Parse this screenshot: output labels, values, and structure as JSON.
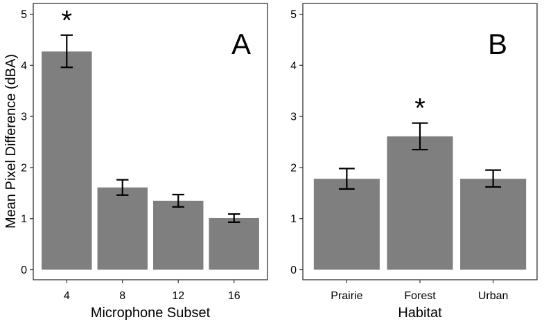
{
  "colors": {
    "bar": "#7f7f7f",
    "frame": "#333333",
    "errorbar": "#000000",
    "background": "#ffffff"
  },
  "y_axis_label": "Mean Pixel Difference (dBA)",
  "chart_data": [
    {
      "type": "bar",
      "panel_label": "A",
      "xlabel": "Microphone Subset",
      "ylabel": "Mean Pixel Difference (dBA)",
      "categories": [
        "4",
        "8",
        "12",
        "16"
      ],
      "values": [
        4.27,
        1.61,
        1.35,
        1.01
      ],
      "error_low": [
        3.96,
        1.46,
        1.23,
        0.93
      ],
      "error_high": [
        4.59,
        1.76,
        1.47,
        1.09
      ],
      "significant": [
        true,
        false,
        false,
        false
      ],
      "significance_marker": "*",
      "ylim": [
        0,
        5
      ],
      "yticks": [
        "0",
        "1",
        "2",
        "3",
        "4",
        "5"
      ],
      "grid": false
    },
    {
      "type": "bar",
      "panel_label": "B",
      "xlabel": "Habitat",
      "ylabel": "",
      "categories": [
        "Prairie",
        "Forest",
        "Urban"
      ],
      "values": [
        1.78,
        2.61,
        1.78
      ],
      "error_low": [
        1.58,
        2.35,
        1.62
      ],
      "error_high": [
        1.98,
        2.87,
        1.95
      ],
      "significant": [
        false,
        true,
        false
      ],
      "significance_marker": "*",
      "ylim": [
        0,
        5
      ],
      "yticks": [
        "0",
        "1",
        "2",
        "3",
        "4",
        "5"
      ],
      "grid": false
    }
  ]
}
